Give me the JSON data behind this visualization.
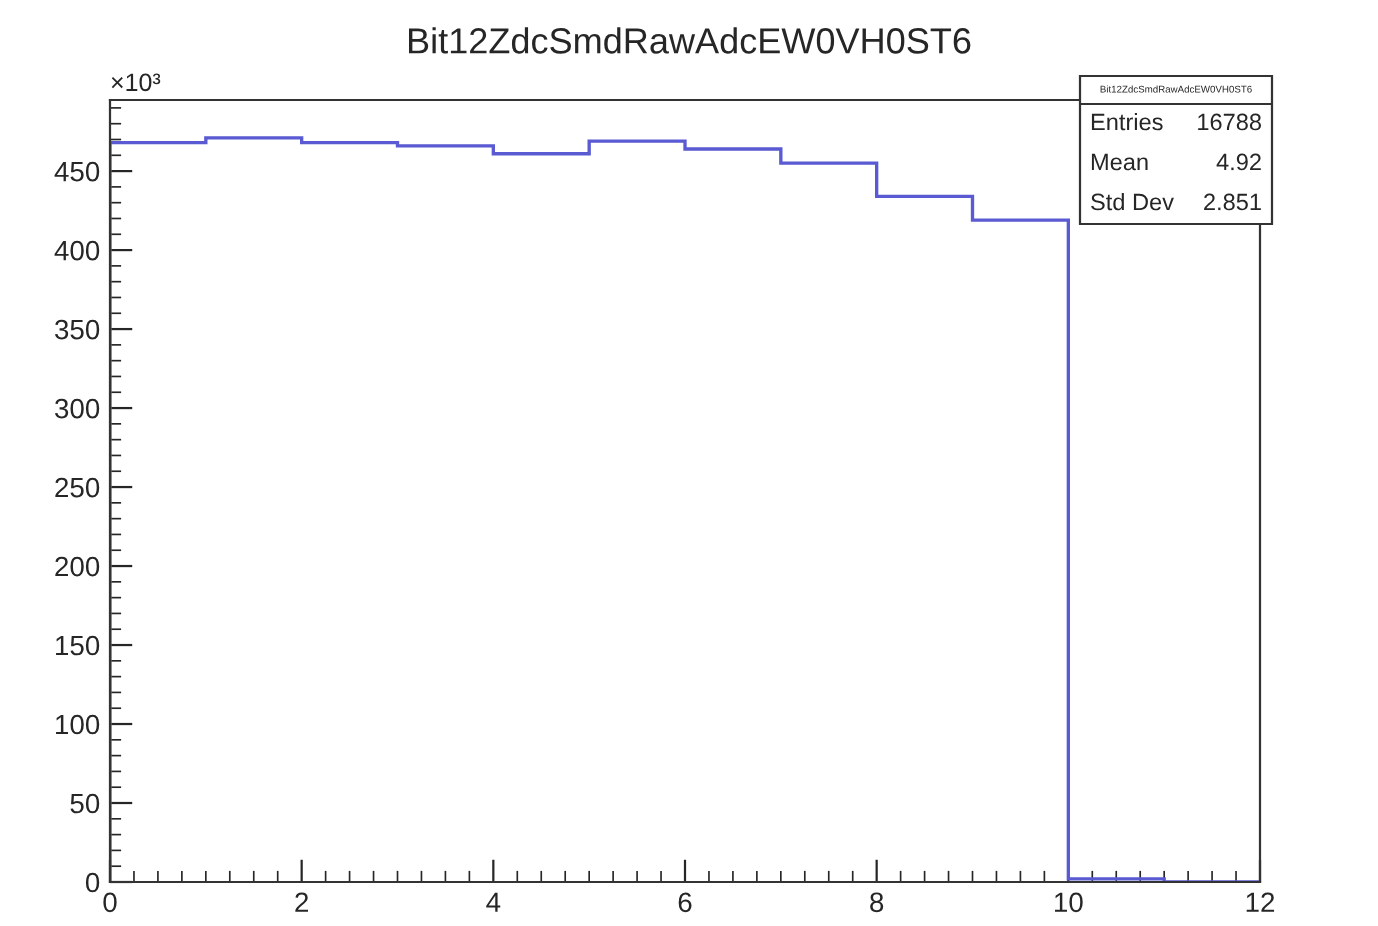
{
  "chart_data": {
    "type": "histogram",
    "title": "Bit12ZdcSmdRawAdcEW0VH0ST6",
    "bins": [
      0,
      1,
      2,
      3,
      4,
      5,
      6,
      7,
      8,
      9,
      10,
      11,
      12
    ],
    "values": [
      468,
      471,
      468,
      466,
      461,
      469,
      464,
      455,
      434,
      419,
      2,
      0
    ],
    "color": "#5a5ad2",
    "xlim": [
      0,
      12
    ],
    "xticks": [
      0,
      2,
      4,
      6,
      8,
      10,
      12
    ],
    "ylim": [
      0,
      495
    ],
    "yticks": [
      0,
      50,
      100,
      150,
      200,
      250,
      300,
      350,
      400,
      450
    ],
    "grid": false,
    "annotations": [
      "×10³",
      "Bit12ZdcSmdRawAdcEW0VH0ST6",
      "Entries",
      "16788",
      "Mean",
      "4.92",
      "Std Dev",
      "2.851"
    ]
  }
}
